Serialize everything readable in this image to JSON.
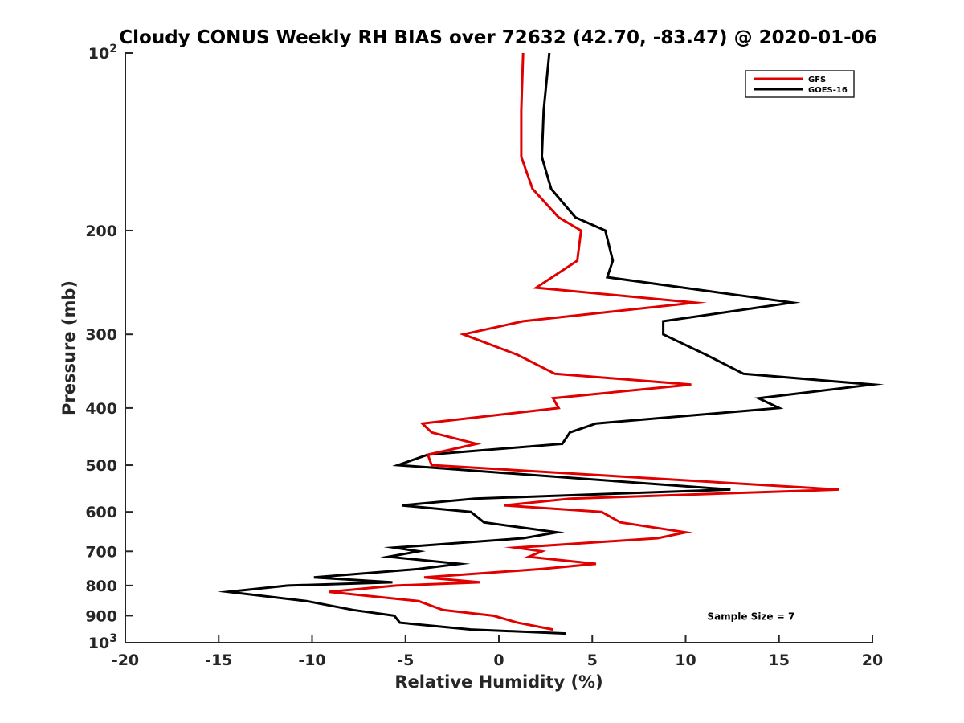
{
  "chart_data": {
    "type": "line",
    "title": "Cloudy CONUS Weekly RH BIAS over 72632 (42.70, -83.47) @ 2020-01-06",
    "xlabel": "Relative Humidity (%)",
    "ylabel": "Pressure (mb)",
    "xlim": [
      -20,
      20
    ],
    "ylim": [
      100,
      1000
    ],
    "yscale": "log",
    "y_reversed": true,
    "grid": false,
    "legend_position": "top-right",
    "x_ticks": [
      -20,
      -15,
      -10,
      -5,
      0,
      5,
      10,
      15,
      20
    ],
    "x_tick_labels": [
      "-20",
      "-15",
      "-10",
      "-5",
      "0",
      "5",
      "10",
      "15",
      "20"
    ],
    "y_ticks": [
      200,
      300,
      400,
      500,
      600,
      700,
      800,
      900
    ],
    "y_tick_labels": [
      "200",
      "300",
      "400",
      "500",
      "600",
      "700",
      "800",
      "900"
    ],
    "y_decade_ticks": [
      {
        "value": 100,
        "base": "10",
        "exp": "2"
      },
      {
        "value": 1000,
        "base": "10",
        "exp": "3"
      }
    ],
    "series": [
      {
        "name": "GFS",
        "color": "#e00000",
        "points": [
          [
            1.3,
            100
          ],
          [
            1.2,
            125
          ],
          [
            1.2,
            150
          ],
          [
            1.8,
            170
          ],
          [
            3.2,
            190
          ],
          [
            4.4,
            200
          ],
          [
            4.2,
            225
          ],
          [
            2.0,
            250
          ],
          [
            10.5,
            265
          ],
          [
            1.3,
            285
          ],
          [
            -1.9,
            300
          ],
          [
            1.0,
            325
          ],
          [
            3.0,
            350
          ],
          [
            10.3,
            365
          ],
          [
            2.9,
            385
          ],
          [
            3.2,
            400
          ],
          [
            -4.1,
            425
          ],
          [
            -3.6,
            440
          ],
          [
            -1.2,
            460
          ],
          [
            -3.8,
            480
          ],
          [
            -3.6,
            500
          ],
          [
            18.2,
            550
          ],
          [
            3.8,
            570
          ],
          [
            0.3,
            585
          ],
          [
            5.5,
            600
          ],
          [
            6.5,
            625
          ],
          [
            10.0,
            650
          ],
          [
            8.5,
            665
          ],
          [
            0.9,
            690
          ],
          [
            2.3,
            700
          ],
          [
            1.6,
            715
          ],
          [
            5.2,
            735
          ],
          [
            2.3,
            750
          ],
          [
            -4.0,
            775
          ],
          [
            -1.0,
            790
          ],
          [
            -5.5,
            800
          ],
          [
            -9.1,
            820
          ],
          [
            -4.3,
            850
          ],
          [
            -3.0,
            880
          ],
          [
            -0.3,
            900
          ],
          [
            1.0,
            925
          ],
          [
            2.9,
            950
          ]
        ]
      },
      {
        "name": "GOES-16",
        "color": "#000000",
        "points": [
          [
            2.7,
            100
          ],
          [
            2.4,
            125
          ],
          [
            2.3,
            150
          ],
          [
            2.8,
            170
          ],
          [
            4.1,
            190
          ],
          [
            5.7,
            200
          ],
          [
            6.1,
            225
          ],
          [
            5.8,
            240
          ],
          [
            15.7,
            265
          ],
          [
            8.8,
            285
          ],
          [
            8.8,
            300
          ],
          [
            11.1,
            325
          ],
          [
            13.1,
            350
          ],
          [
            20.0,
            365
          ],
          [
            13.9,
            385
          ],
          [
            15.0,
            400
          ],
          [
            5.2,
            425
          ],
          [
            3.8,
            440
          ],
          [
            3.4,
            460
          ],
          [
            -3.8,
            480
          ],
          [
            -5.4,
            500
          ],
          [
            12.4,
            550
          ],
          [
            -1.3,
            570
          ],
          [
            -5.2,
            585
          ],
          [
            -1.5,
            600
          ],
          [
            -0.8,
            625
          ],
          [
            3.1,
            650
          ],
          [
            1.3,
            665
          ],
          [
            -5.6,
            690
          ],
          [
            -4.3,
            700
          ],
          [
            -5.9,
            715
          ],
          [
            -2.1,
            735
          ],
          [
            -4.3,
            750
          ],
          [
            -9.9,
            775
          ],
          [
            -5.7,
            790
          ],
          [
            -11.3,
            800
          ],
          [
            -14.5,
            820
          ],
          [
            -10.3,
            850
          ],
          [
            -7.8,
            880
          ],
          [
            -5.6,
            900
          ],
          [
            -5.3,
            925
          ],
          [
            -1.5,
            950
          ],
          [
            3.6,
            965
          ]
        ]
      }
    ],
    "annotations": [
      {
        "text": "Sample Size = 7",
        "x": 13.5,
        "y": 900
      }
    ]
  }
}
